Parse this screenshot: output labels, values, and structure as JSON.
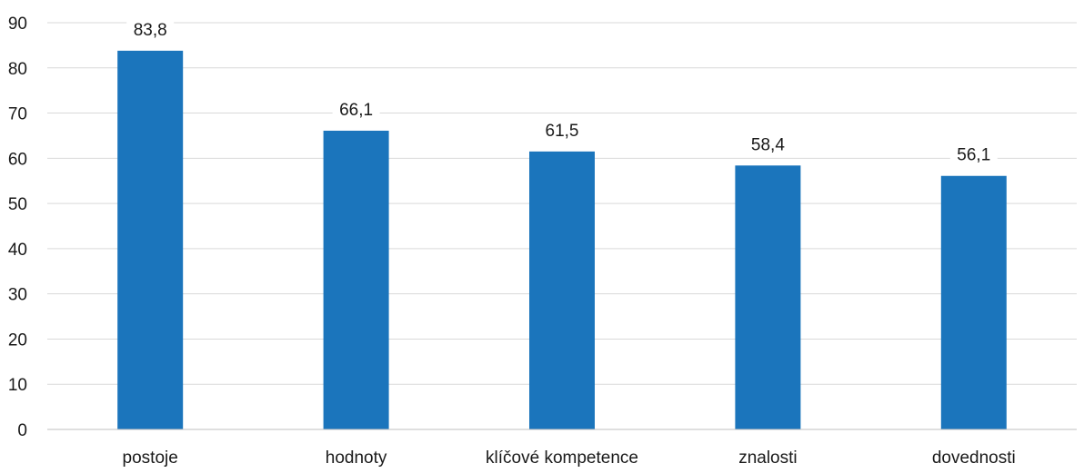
{
  "chart_data": {
    "type": "bar",
    "title": "",
    "xlabel": "",
    "ylabel": "",
    "categories": [
      "postoje",
      "hodnoty",
      "klíčové kompetence",
      "znalosti",
      "dovednosti"
    ],
    "values": [
      83.8,
      66.1,
      61.5,
      58.4,
      56.1
    ],
    "value_labels": [
      "83,8",
      "66,1",
      "61,5",
      "58,4",
      "56,1"
    ],
    "ylim": [
      0,
      90
    ],
    "yticks": [
      0,
      10,
      20,
      30,
      40,
      50,
      60,
      70,
      80,
      90
    ],
    "grid": true,
    "legend": "none",
    "colors": {
      "bar": "#1b75bc",
      "grid": "#d9d9d9",
      "axis": "#bfbfbf",
      "text": "#1a1a1a",
      "label_background": "#ffffff"
    }
  }
}
